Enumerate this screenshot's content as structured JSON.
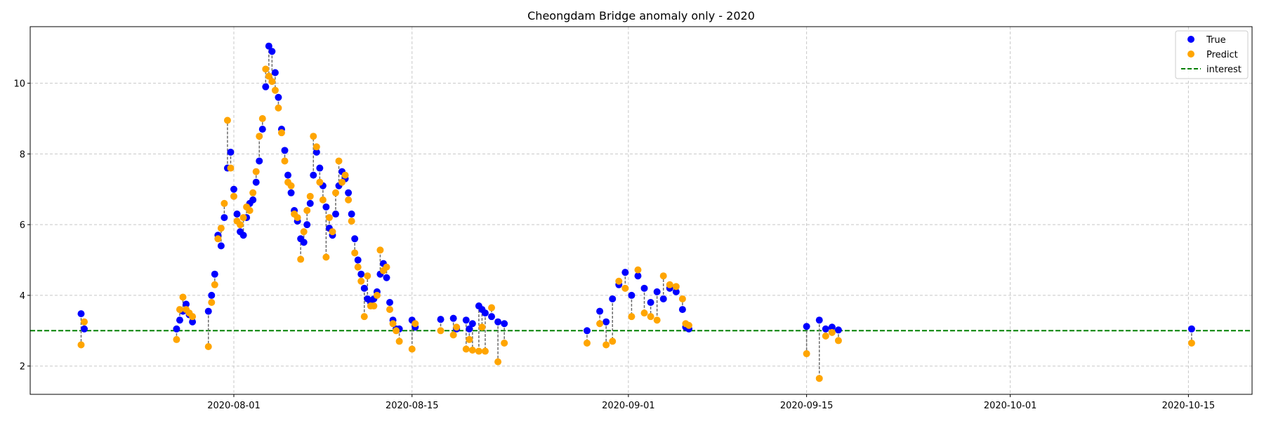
{
  "chart_data": {
    "type": "scatter",
    "title": "Cheongdam Bridge anomaly only - 2020",
    "xlabel": "",
    "ylabel": "",
    "x_axis_type": "date",
    "xlim": [
      "2020-07-16",
      "2020-10-20"
    ],
    "ylim": [
      1.2,
      11.6
    ],
    "x_ticks": [
      "2020-08-01",
      "2020-08-15",
      "2020-09-01",
      "2020-09-15",
      "2020-10-01",
      "2020-10-15"
    ],
    "y_ticks": [
      2,
      4,
      6,
      8,
      10
    ],
    "grid": true,
    "grid_style": "dashed",
    "legend_position": "top-right",
    "reference_line": {
      "name": "interest",
      "y": 3.0,
      "color": "#008000",
      "style": "dashed"
    },
    "series": [
      {
        "name": "True",
        "color": "#0000ff",
        "points": [
          [
            "2020-07-20T00:00",
            3.48
          ],
          [
            "2020-07-20T06:00",
            3.05
          ],
          [
            "2020-07-27T12:00",
            3.05
          ],
          [
            "2020-07-27T18:00",
            3.3
          ],
          [
            "2020-07-28T00:00",
            3.55
          ],
          [
            "2020-07-28T06:00",
            3.75
          ],
          [
            "2020-07-28T12:00",
            3.45
          ],
          [
            "2020-07-28T18:00",
            3.25
          ],
          [
            "2020-07-30T00:00",
            3.55
          ],
          [
            "2020-07-30T06:00",
            4.0
          ],
          [
            "2020-07-30T12:00",
            4.6
          ],
          [
            "2020-07-30T18:00",
            5.7
          ],
          [
            "2020-07-31T00:00",
            5.4
          ],
          [
            "2020-07-31T06:00",
            6.2
          ],
          [
            "2020-07-31T12:00",
            7.6
          ],
          [
            "2020-07-31T18:00",
            8.05
          ],
          [
            "2020-08-01T00:00",
            7.0
          ],
          [
            "2020-08-01T06:00",
            6.3
          ],
          [
            "2020-08-01T12:00",
            5.8
          ],
          [
            "2020-08-01T18:00",
            5.7
          ],
          [
            "2020-08-02T00:00",
            6.2
          ],
          [
            "2020-08-02T06:00",
            6.6
          ],
          [
            "2020-08-02T12:00",
            6.7
          ],
          [
            "2020-08-02T18:00",
            7.2
          ],
          [
            "2020-08-03T00:00",
            7.8
          ],
          [
            "2020-08-03T06:00",
            8.7
          ],
          [
            "2020-08-03T12:00",
            9.9
          ],
          [
            "2020-08-03T18:00",
            11.05
          ],
          [
            "2020-08-04T00:00",
            10.9
          ],
          [
            "2020-08-04T06:00",
            10.3
          ],
          [
            "2020-08-04T12:00",
            9.6
          ],
          [
            "2020-08-04T18:00",
            8.7
          ],
          [
            "2020-08-05T00:00",
            8.1
          ],
          [
            "2020-08-05T06:00",
            7.4
          ],
          [
            "2020-08-05T12:00",
            6.9
          ],
          [
            "2020-08-05T18:00",
            6.4
          ],
          [
            "2020-08-06T00:00",
            6.1
          ],
          [
            "2020-08-06T06:00",
            5.6
          ],
          [
            "2020-08-06T12:00",
            5.5
          ],
          [
            "2020-08-06T18:00",
            6.0
          ],
          [
            "2020-08-07T00:00",
            6.6
          ],
          [
            "2020-08-07T06:00",
            7.4
          ],
          [
            "2020-08-07T12:00",
            8.05
          ],
          [
            "2020-08-07T18:00",
            7.6
          ],
          [
            "2020-08-08T00:00",
            7.1
          ],
          [
            "2020-08-08T06:00",
            6.5
          ],
          [
            "2020-08-08T12:00",
            5.9
          ],
          [
            "2020-08-08T18:00",
            5.7
          ],
          [
            "2020-08-09T00:00",
            6.3
          ],
          [
            "2020-08-09T06:00",
            7.1
          ],
          [
            "2020-08-09T12:00",
            7.5
          ],
          [
            "2020-08-09T18:00",
            7.3
          ],
          [
            "2020-08-10T00:00",
            6.9
          ],
          [
            "2020-08-10T06:00",
            6.3
          ],
          [
            "2020-08-10T12:00",
            5.6
          ],
          [
            "2020-08-10T18:00",
            5.0
          ],
          [
            "2020-08-11T00:00",
            4.6
          ],
          [
            "2020-08-11T06:00",
            4.2
          ],
          [
            "2020-08-11T12:00",
            3.9
          ],
          [
            "2020-08-11T18:00",
            3.8
          ],
          [
            "2020-08-12T00:00",
            3.9
          ],
          [
            "2020-08-12T06:00",
            4.1
          ],
          [
            "2020-08-12T12:00",
            4.6
          ],
          [
            "2020-08-12T18:00",
            4.9
          ],
          [
            "2020-08-13T00:00",
            4.5
          ],
          [
            "2020-08-13T06:00",
            3.8
          ],
          [
            "2020-08-13T12:00",
            3.3
          ],
          [
            "2020-08-13T18:00",
            3.05
          ],
          [
            "2020-08-14T00:00",
            3.05
          ],
          [
            "2020-08-15T00:00",
            3.3
          ],
          [
            "2020-08-15T06:00",
            3.1
          ],
          [
            "2020-08-17T06:00",
            3.32
          ],
          [
            "2020-08-18T06:00",
            3.35
          ],
          [
            "2020-08-18T12:00",
            3.05
          ],
          [
            "2020-08-19T06:00",
            3.3
          ],
          [
            "2020-08-19T12:00",
            3.05
          ],
          [
            "2020-08-19T18:00",
            3.2
          ],
          [
            "2020-08-20T06:00",
            3.7
          ],
          [
            "2020-08-20T12:00",
            3.6
          ],
          [
            "2020-08-20T18:00",
            3.5
          ],
          [
            "2020-08-21T06:00",
            3.4
          ],
          [
            "2020-08-21T18:00",
            3.25
          ],
          [
            "2020-08-22T06:00",
            3.2
          ],
          [
            "2020-08-28T18:00",
            3.0
          ],
          [
            "2020-08-29T18:00",
            3.55
          ],
          [
            "2020-08-30T06:00",
            3.25
          ],
          [
            "2020-08-30T18:00",
            3.9
          ],
          [
            "2020-08-31T06:00",
            4.3
          ],
          [
            "2020-08-31T18:00",
            4.65
          ],
          [
            "2020-09-01T06:00",
            4.0
          ],
          [
            "2020-09-01T18:00",
            4.55
          ],
          [
            "2020-09-02T06:00",
            4.2
          ],
          [
            "2020-09-02T18:00",
            3.8
          ],
          [
            "2020-09-03T06:00",
            4.1
          ],
          [
            "2020-09-03T18:00",
            3.9
          ],
          [
            "2020-09-04T06:00",
            4.2
          ],
          [
            "2020-09-04T18:00",
            4.1
          ],
          [
            "2020-09-05T06:00",
            3.6
          ],
          [
            "2020-09-05T12:00",
            3.1
          ],
          [
            "2020-09-05T18:00",
            3.05
          ],
          [
            "2020-09-15T00:00",
            3.12
          ],
          [
            "2020-09-16T00:00",
            3.3
          ],
          [
            "2020-09-16T12:00",
            3.05
          ],
          [
            "2020-09-17T00:00",
            3.1
          ],
          [
            "2020-09-17T12:00",
            3.02
          ],
          [
            "2020-10-15T06:00",
            3.05
          ]
        ]
      },
      {
        "name": "Predict",
        "color": "#ffa500",
        "points": [
          [
            "2020-07-20T00:00",
            2.6
          ],
          [
            "2020-07-20T06:00",
            3.25
          ],
          [
            "2020-07-27T12:00",
            2.75
          ],
          [
            "2020-07-27T18:00",
            3.6
          ],
          [
            "2020-07-28T00:00",
            3.95
          ],
          [
            "2020-07-28T06:00",
            3.6
          ],
          [
            "2020-07-28T12:00",
            3.5
          ],
          [
            "2020-07-28T18:00",
            3.4
          ],
          [
            "2020-07-30T00:00",
            2.55
          ],
          [
            "2020-07-30T06:00",
            3.8
          ],
          [
            "2020-07-30T12:00",
            4.3
          ],
          [
            "2020-07-30T18:00",
            5.6
          ],
          [
            "2020-07-31T00:00",
            5.9
          ],
          [
            "2020-07-31T06:00",
            6.6
          ],
          [
            "2020-07-31T12:00",
            8.95
          ],
          [
            "2020-07-31T18:00",
            7.6
          ],
          [
            "2020-08-01T00:00",
            6.8
          ],
          [
            "2020-08-01T06:00",
            6.1
          ],
          [
            "2020-08-01T12:00",
            6.0
          ],
          [
            "2020-08-01T18:00",
            6.2
          ],
          [
            "2020-08-02T00:00",
            6.5
          ],
          [
            "2020-08-02T06:00",
            6.4
          ],
          [
            "2020-08-02T12:00",
            6.9
          ],
          [
            "2020-08-02T18:00",
            7.5
          ],
          [
            "2020-08-03T00:00",
            8.5
          ],
          [
            "2020-08-03T06:00",
            9.0
          ],
          [
            "2020-08-03T12:00",
            10.4
          ],
          [
            "2020-08-03T18:00",
            10.2
          ],
          [
            "2020-08-04T00:00",
            10.05
          ],
          [
            "2020-08-04T06:00",
            9.8
          ],
          [
            "2020-08-04T12:00",
            9.3
          ],
          [
            "2020-08-04T18:00",
            8.6
          ],
          [
            "2020-08-05T00:00",
            7.8
          ],
          [
            "2020-08-05T06:00",
            7.2
          ],
          [
            "2020-08-05T12:00",
            7.1
          ],
          [
            "2020-08-05T18:00",
            6.3
          ],
          [
            "2020-08-06T00:00",
            6.2
          ],
          [
            "2020-08-06T06:00",
            5.02
          ],
          [
            "2020-08-06T12:00",
            5.8
          ],
          [
            "2020-08-06T18:00",
            6.4
          ],
          [
            "2020-08-07T00:00",
            6.8
          ],
          [
            "2020-08-07T06:00",
            8.5
          ],
          [
            "2020-08-07T12:00",
            8.2
          ],
          [
            "2020-08-07T18:00",
            7.2
          ],
          [
            "2020-08-08T00:00",
            6.7
          ],
          [
            "2020-08-08T06:00",
            5.08
          ],
          [
            "2020-08-08T12:00",
            6.2
          ],
          [
            "2020-08-08T18:00",
            5.8
          ],
          [
            "2020-08-09T00:00",
            6.9
          ],
          [
            "2020-08-09T06:00",
            7.8
          ],
          [
            "2020-08-09T12:00",
            7.2
          ],
          [
            "2020-08-09T18:00",
            7.4
          ],
          [
            "2020-08-10T00:00",
            6.7
          ],
          [
            "2020-08-10T06:00",
            6.1
          ],
          [
            "2020-08-10T12:00",
            5.2
          ],
          [
            "2020-08-10T18:00",
            4.8
          ],
          [
            "2020-08-11T00:00",
            4.4
          ],
          [
            "2020-08-11T06:00",
            3.4
          ],
          [
            "2020-08-11T12:00",
            4.55
          ],
          [
            "2020-08-11T18:00",
            3.7
          ],
          [
            "2020-08-12T00:00",
            3.7
          ],
          [
            "2020-08-12T06:00",
            4.0
          ],
          [
            "2020-08-12T12:00",
            5.28
          ],
          [
            "2020-08-12T18:00",
            4.7
          ],
          [
            "2020-08-13T00:00",
            4.8
          ],
          [
            "2020-08-13T06:00",
            3.6
          ],
          [
            "2020-08-13T12:00",
            3.2
          ],
          [
            "2020-08-13T18:00",
            3.0
          ],
          [
            "2020-08-14T00:00",
            2.7
          ],
          [
            "2020-08-15T00:00",
            2.48
          ],
          [
            "2020-08-15T06:00",
            3.2
          ],
          [
            "2020-08-17T06:00",
            3.0
          ],
          [
            "2020-08-18T06:00",
            2.88
          ],
          [
            "2020-08-18T12:00",
            3.1
          ],
          [
            "2020-08-19T06:00",
            2.48
          ],
          [
            "2020-08-19T12:00",
            2.75
          ],
          [
            "2020-08-19T18:00",
            2.45
          ],
          [
            "2020-08-20T06:00",
            2.42
          ],
          [
            "2020-08-20T12:00",
            3.1
          ],
          [
            "2020-08-20T18:00",
            2.42
          ],
          [
            "2020-08-21T06:00",
            3.65
          ],
          [
            "2020-08-21T18:00",
            2.12
          ],
          [
            "2020-08-22T06:00",
            2.65
          ],
          [
            "2020-08-28T18:00",
            2.65
          ],
          [
            "2020-08-29T18:00",
            3.2
          ],
          [
            "2020-08-30T06:00",
            2.6
          ],
          [
            "2020-08-30T18:00",
            2.7
          ],
          [
            "2020-08-31T06:00",
            4.4
          ],
          [
            "2020-08-31T18:00",
            4.2
          ],
          [
            "2020-09-01T06:00",
            3.4
          ],
          [
            "2020-09-01T18:00",
            4.72
          ],
          [
            "2020-09-02T06:00",
            3.5
          ],
          [
            "2020-09-02T18:00",
            3.4
          ],
          [
            "2020-09-03T06:00",
            3.3
          ],
          [
            "2020-09-03T18:00",
            4.55
          ],
          [
            "2020-09-04T06:00",
            4.3
          ],
          [
            "2020-09-04T18:00",
            4.25
          ],
          [
            "2020-09-05T06:00",
            3.9
          ],
          [
            "2020-09-05T12:00",
            3.2
          ],
          [
            "2020-09-05T18:00",
            3.15
          ],
          [
            "2020-09-15T00:00",
            2.35
          ],
          [
            "2020-09-16T00:00",
            1.65
          ],
          [
            "2020-09-16T12:00",
            2.85
          ],
          [
            "2020-09-17T00:00",
            2.95
          ],
          [
            "2020-09-17T12:00",
            2.72
          ],
          [
            "2020-10-15T06:00",
            2.65
          ]
        ]
      }
    ]
  }
}
